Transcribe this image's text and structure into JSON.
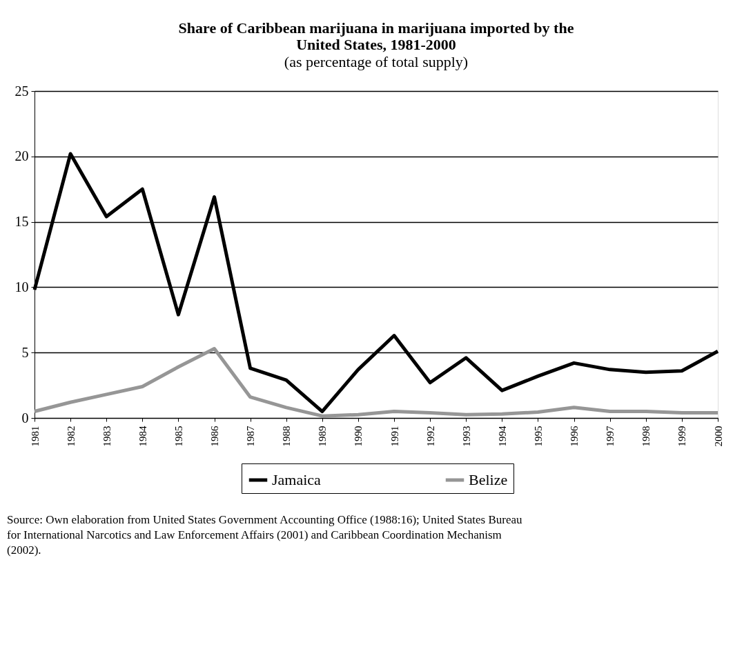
{
  "chart_data": {
    "type": "line",
    "title": "Share of Caribbean marijuana in marijuana imported by the United States, 1981-2000",
    "subtitle": "(as percentage of total supply)",
    "categories": [
      "1981",
      "1982",
      "1983",
      "1984",
      "1985",
      "1986",
      "1987",
      "1988",
      "1989",
      "1990",
      "1991",
      "1992",
      "1993",
      "1994",
      "1995",
      "1996",
      "1997",
      "1998",
      "1999",
      "2000"
    ],
    "series": [
      {
        "name": "Jamaica",
        "color": "#000000",
        "values": [
          9.8,
          20.2,
          15.4,
          17.5,
          7.9,
          16.9,
          3.8,
          2.9,
          0.5,
          3.7,
          6.3,
          2.7,
          4.6,
          2.1,
          3.2,
          4.2,
          3.7,
          3.5,
          3.6,
          5.1
        ]
      },
      {
        "name": "Belize",
        "color": "#969696",
        "values": [
          0.5,
          1.2,
          1.8,
          2.4,
          3.9,
          5.3,
          1.6,
          0.8,
          0.15,
          0.25,
          0.5,
          0.4,
          0.25,
          0.3,
          0.45,
          0.8,
          0.5,
          0.5,
          0.4,
          0.4
        ]
      }
    ],
    "ylim": [
      0,
      25
    ],
    "yticks": [
      0,
      5,
      10,
      15,
      20,
      25
    ],
    "grid": "y",
    "legend": "bottom",
    "marker": "none",
    "line_style": "solid",
    "annotations": [
      "Source: Own elaboration from United States Government Accounting Office (1988:16); United States Bureau for International Narcotics and Law Enforcement Affairs (2001) and Caribbean Coordination Mechanism (2002)."
    ]
  }
}
